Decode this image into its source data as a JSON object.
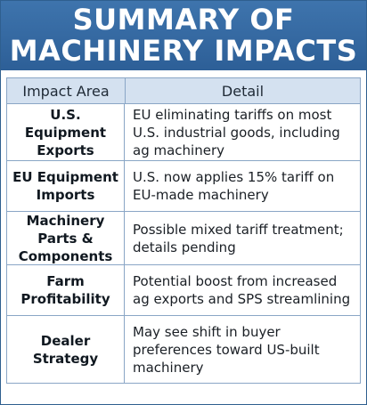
{
  "title": {
    "line1": "SUMMARY OF",
    "line2": "MACHINERY IMPACTS"
  },
  "table": {
    "headers": {
      "impact_area": "Impact Area",
      "detail": "Detail"
    },
    "rows": [
      {
        "area": "U.S. Equipment Exports",
        "detail": "EU eliminating tariffs on most U.S. industrial goods, including ag machinery"
      },
      {
        "area": "EU Equipment Imports",
        "detail": "U.S. now applies 15% tariff on EU-made machinery"
      },
      {
        "area": "Machinery Parts & Components",
        "detail": "Possible mixed tariff treatment; details pending"
      },
      {
        "area": "Farm Profitability",
        "detail": "Potential boost from increased ag exports and SPS streamlining"
      },
      {
        "area": "Dealer Strategy",
        "detail": "May see shift in buyer preferences toward US-built machinery"
      }
    ]
  },
  "colors": {
    "banner": "#2d5f97",
    "header_fill": "#d4e1f0",
    "border": "#8aa6c6"
  }
}
